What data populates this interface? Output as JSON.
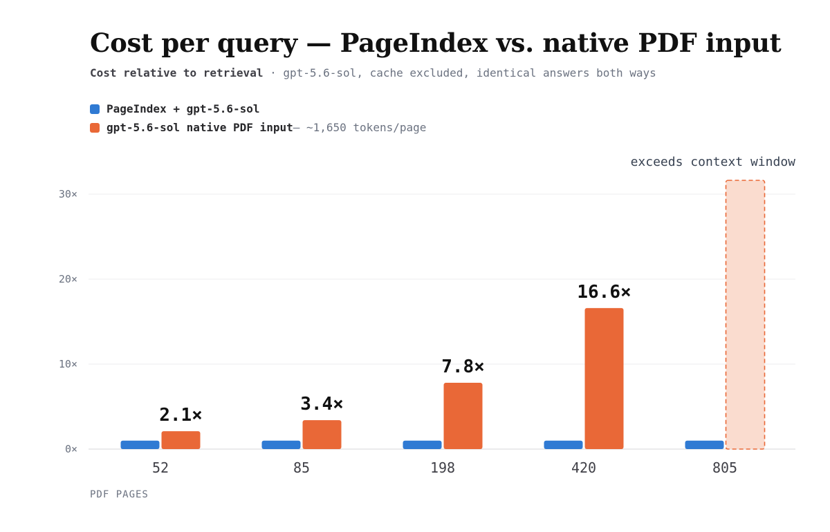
{
  "header": {
    "title": "Cost per query — PageIndex vs. native PDF input",
    "subtitle_strong": "Cost relative to retrieval",
    "subtitle_rest": " · gpt-5.6-sol, cache excluded, identical answers both ways"
  },
  "legend": {
    "items": [
      {
        "label": "PageIndex + gpt-5.6-sol",
        "note": "",
        "color": "#2f7ad3"
      },
      {
        "label": "gpt-5.6-sol native PDF input",
        "note": " — ~1,650 tokens/page",
        "color": "#e96837"
      }
    ]
  },
  "chart_data": {
    "type": "bar",
    "categories": [
      "52",
      "85",
      "198",
      "420",
      "805"
    ],
    "series": [
      {
        "name": "PageIndex + gpt-5.6-sol",
        "values": [
          1,
          1,
          1,
          1,
          1
        ],
        "color": "#2f7ad3"
      },
      {
        "name": "gpt-5.6-sol native PDF input",
        "values": [
          2.1,
          3.4,
          7.8,
          16.6,
          null
        ],
        "color": "#e96837"
      }
    ],
    "data_labels": [
      "2.1×",
      "3.4×",
      "7.8×",
      "16.6×",
      ""
    ],
    "overflow": {
      "category": "805",
      "annotation": "exceeds context window",
      "fill": "#fadccf",
      "stroke": "#e96837"
    },
    "xlabel": "PDF PAGES",
    "ylabel": "",
    "yticks": [
      0,
      10,
      20,
      30
    ],
    "ytick_labels": [
      "0×",
      "10×",
      "20×",
      "30×"
    ],
    "ylim": [
      0,
      31
    ],
    "grid": true,
    "legend_position": "top-left"
  }
}
